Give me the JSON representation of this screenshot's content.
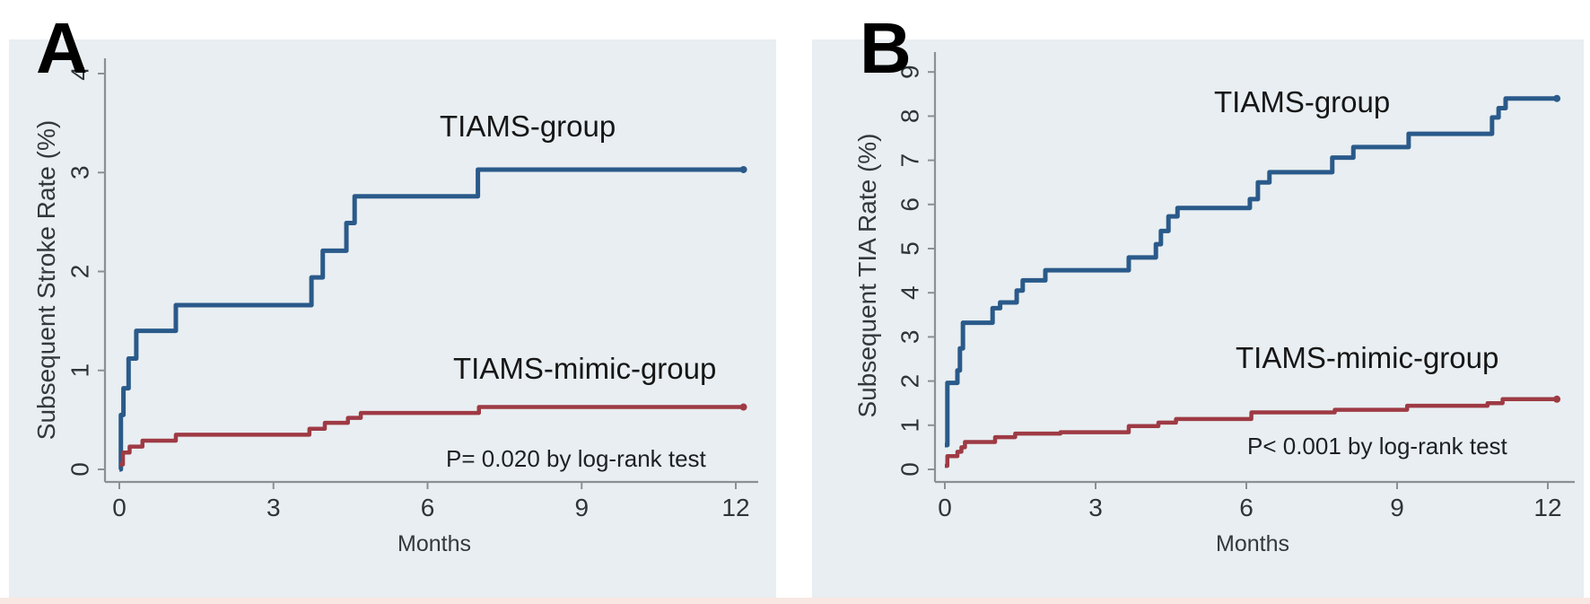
{
  "figure": {
    "panel_letters": [
      "A",
      "B"
    ],
    "panel_background": "#e8eef1",
    "bottom_strip_color": "#f8e7e3",
    "axis_color": "#8a9096",
    "tick_text_color": "#2f3438"
  },
  "chart_data": [
    {
      "type": "line",
      "subtype": "kaplan-meier-step",
      "panel": "A",
      "ylabel": "Subsequent Stroke Rate (%)",
      "xlabel": "Months",
      "xlim": [
        0,
        12.3
      ],
      "ylim": [
        0,
        4.2
      ],
      "xticks": [
        0,
        3,
        6,
        9,
        12
      ],
      "yticks": [
        0,
        1,
        2,
        3,
        4
      ],
      "grid": false,
      "legend_position": "inline-annotations",
      "p_value_text": "P= 0.020 by log-rank test",
      "series": [
        {
          "name": "TIAMS-group",
          "color": "#2a5a8a",
          "width": 5,
          "points": [
            [
              0,
              0
            ],
            [
              0.03,
              0.55
            ],
            [
              0.08,
              0.82
            ],
            [
              0.18,
              1.12
            ],
            [
              0.33,
              1.4
            ],
            [
              1.1,
              1.66
            ],
            [
              3.74,
              1.94
            ],
            [
              3.96,
              2.21
            ],
            [
              4.42,
              2.49
            ],
            [
              4.58,
              2.76
            ],
            [
              6.98,
              3.03
            ],
            [
              12.15,
              3.03
            ]
          ]
        },
        {
          "name": "TIAMS-mimic-group",
          "color": "#9e3a44",
          "width": 4.5,
          "points": [
            [
              0,
              0.05
            ],
            [
              0.07,
              0.17
            ],
            [
              0.2,
              0.23
            ],
            [
              0.45,
              0.29
            ],
            [
              1.1,
              0.35
            ],
            [
              3.7,
              0.41
            ],
            [
              4.0,
              0.47
            ],
            [
              4.45,
              0.52
            ],
            [
              4.7,
              0.57
            ],
            [
              7.0,
              0.63
            ],
            [
              12.15,
              0.63
            ]
          ]
        }
      ]
    },
    {
      "type": "line",
      "subtype": "kaplan-meier-step",
      "panel": "B",
      "ylabel": "Subsequent TIA Rate (%)",
      "xlabel": "Months",
      "xlim": [
        0,
        12.3
      ],
      "ylim": [
        0,
        9.5
      ],
      "xticks": [
        0,
        3,
        6,
        9,
        12
      ],
      "yticks": [
        0,
        1,
        2,
        3,
        4,
        5,
        6,
        7,
        8,
        9
      ],
      "grid": false,
      "legend_position": "inline-annotations",
      "p_value_text": "P< 0.001 by log-rank test",
      "series": [
        {
          "name": "TIAMS-group",
          "color": "#2a5a8a",
          "width": 5,
          "points": [
            [
              0,
              0.55
            ],
            [
              0.05,
              1.96
            ],
            [
              0.25,
              2.24
            ],
            [
              0.3,
              2.74
            ],
            [
              0.36,
              3.32
            ],
            [
              0.95,
              3.65
            ],
            [
              1.1,
              3.78
            ],
            [
              1.43,
              4.05
            ],
            [
              1.55,
              4.28
            ],
            [
              2.0,
              4.51
            ],
            [
              3.66,
              4.8
            ],
            [
              4.2,
              5.1
            ],
            [
              4.3,
              5.4
            ],
            [
              4.45,
              5.73
            ],
            [
              4.63,
              5.92
            ],
            [
              6.07,
              6.12
            ],
            [
              6.23,
              6.5
            ],
            [
              6.46,
              6.73
            ],
            [
              7.71,
              7.06
            ],
            [
              8.13,
              7.3
            ],
            [
              9.23,
              7.6
            ],
            [
              10.89,
              7.97
            ],
            [
              11.02,
              8.18
            ],
            [
              11.16,
              8.4
            ],
            [
              12.18,
              8.4
            ]
          ]
        },
        {
          "name": "TIAMS-mimic-group",
          "color": "#9e3a44",
          "width": 4.5,
          "points": [
            [
              0,
              0.08
            ],
            [
              0.05,
              0.3
            ],
            [
              0.25,
              0.4
            ],
            [
              0.33,
              0.5
            ],
            [
              0.4,
              0.62
            ],
            [
              1.0,
              0.73
            ],
            [
              1.4,
              0.81
            ],
            [
              2.3,
              0.84
            ],
            [
              3.66,
              0.98
            ],
            [
              4.25,
              1.06
            ],
            [
              4.6,
              1.14
            ],
            [
              6.1,
              1.29
            ],
            [
              7.76,
              1.35
            ],
            [
              9.2,
              1.44
            ],
            [
              10.8,
              1.5
            ],
            [
              11.1,
              1.59
            ],
            [
              12.18,
              1.59
            ]
          ]
        }
      ]
    }
  ]
}
